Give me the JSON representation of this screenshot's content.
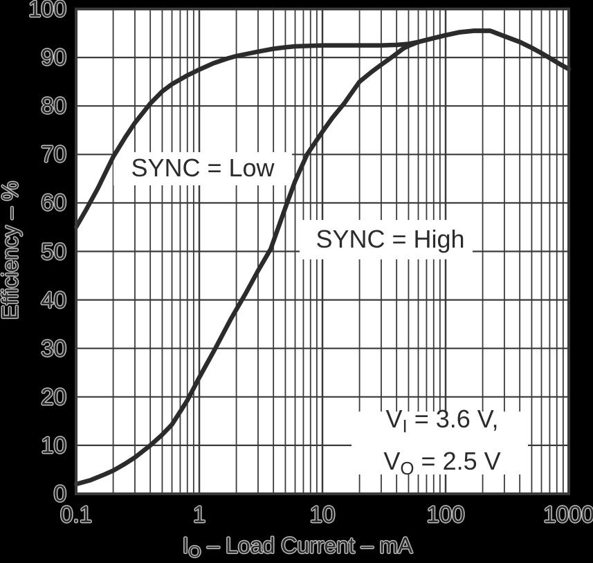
{
  "colors": {
    "background": "#000000",
    "plot_background": "#ffffff",
    "grid": "#3a3a3a",
    "curve": "#2b2b2b",
    "outside_text": "#2a2a2a",
    "outside_text_halo": "#c0c0c0",
    "inside_text": "#2b2b2b"
  },
  "axes": {
    "y": {
      "title": "Efficiency – %",
      "min": 0,
      "max": 100,
      "tick_step": 10,
      "tick_labels": [
        "0",
        "10",
        "20",
        "30",
        "40",
        "50",
        "60",
        "70",
        "80",
        "90",
        "100"
      ]
    },
    "x": {
      "title_main": "I",
      "title_sub": "O",
      "title_rest": " – Load Current – mA",
      "scale": "log",
      "min": 0.1,
      "max": 1000,
      "ticks": [
        {
          "v": 0.1,
          "label": "0.1"
        },
        {
          "v": 1,
          "label": "1"
        },
        {
          "v": 10,
          "label": "10"
        },
        {
          "v": 100,
          "label": "100"
        },
        {
          "v": 1000,
          "label": "1000"
        }
      ]
    }
  },
  "annotations": {
    "sync_low": "SYNC = Low",
    "sync_high": "SYNC = High",
    "cond1_main": "V",
    "cond1_sub": "I",
    "cond1_rest": " = 3.6 V,",
    "cond2_main": "V",
    "cond2_sub": "O",
    "cond2_rest": " = 2.5 V"
  },
  "chart_data": {
    "type": "line",
    "title": "",
    "xlabel": "IO – Load Current – mA",
    "ylabel": "Efficiency – %",
    "x_scale": "log",
    "xlim": [
      0.1,
      1000
    ],
    "ylim": [
      0,
      100
    ],
    "x_ticks": [
      0.1,
      1,
      10,
      100,
      1000
    ],
    "y_ticks": [
      0,
      10,
      20,
      30,
      40,
      50,
      60,
      70,
      80,
      90,
      100
    ],
    "grid": "major horizontal + log major/minor vertical",
    "legend_position": "inline-labels",
    "series": [
      {
        "name": "SYNC = Low",
        "points": [
          [
            0.1,
            55
          ],
          [
            0.12,
            58.5
          ],
          [
            0.15,
            63
          ],
          [
            0.2,
            69.5
          ],
          [
            0.25,
            73.5
          ],
          [
            0.3,
            76.5
          ],
          [
            0.4,
            80.5
          ],
          [
            0.5,
            83
          ],
          [
            0.6,
            84.5
          ],
          [
            0.8,
            86.3
          ],
          [
            1,
            87.5
          ],
          [
            1.3,
            88.8
          ],
          [
            1.7,
            89.8
          ],
          [
            2,
            90.3
          ],
          [
            2.5,
            90.8
          ],
          [
            3,
            91.2
          ],
          [
            4,
            91.8
          ],
          [
            5,
            92.1
          ],
          [
            6,
            92.3
          ],
          [
            8,
            92.4
          ],
          [
            10,
            92.5
          ],
          [
            15,
            92.5
          ],
          [
            20,
            92.5
          ],
          [
            30,
            92.5
          ],
          [
            40,
            92.6
          ],
          [
            50,
            92.8
          ],
          [
            60,
            93.2
          ],
          [
            80,
            94
          ],
          [
            100,
            94.6
          ],
          [
            130,
            95.2
          ],
          [
            170,
            95.5
          ],
          [
            230,
            95.5
          ],
          [
            300,
            94.4
          ],
          [
            400,
            93.2
          ],
          [
            500,
            92
          ],
          [
            600,
            90.9
          ],
          [
            700,
            89.9
          ],
          [
            850,
            88.6
          ],
          [
            1000,
            87.6
          ]
        ]
      },
      {
        "name": "SYNC = High",
        "points": [
          [
            0.1,
            2
          ],
          [
            0.13,
            2.8
          ],
          [
            0.17,
            4
          ],
          [
            0.2,
            4.8
          ],
          [
            0.25,
            6.2
          ],
          [
            0.3,
            7.5
          ],
          [
            0.4,
            10
          ],
          [
            0.5,
            12.2
          ],
          [
            0.6,
            14.3
          ],
          [
            0.8,
            19.3
          ],
          [
            1,
            24
          ],
          [
            1.35,
            30
          ],
          [
            1.8,
            36
          ],
          [
            2.4,
            41.5
          ],
          [
            3,
            46
          ],
          [
            3.8,
            50.5
          ],
          [
            5,
            59
          ],
          [
            6,
            64.5
          ],
          [
            7.5,
            70
          ],
          [
            9,
            73
          ],
          [
            10,
            74.7
          ],
          [
            12,
            77.5
          ],
          [
            15,
            80.5
          ],
          [
            20,
            85
          ],
          [
            25,
            87
          ],
          [
            30,
            88.5
          ],
          [
            35,
            89.7
          ],
          [
            40,
            90.8
          ],
          [
            45,
            91.8
          ],
          [
            50,
            92.4
          ],
          [
            60,
            93.2
          ],
          [
            80,
            94
          ],
          [
            100,
            94.6
          ],
          [
            130,
            95.2
          ],
          [
            170,
            95.5
          ],
          [
            230,
            95.5
          ],
          [
            300,
            94.4
          ],
          [
            400,
            93.2
          ],
          [
            500,
            92
          ],
          [
            600,
            90.9
          ],
          [
            700,
            89.9
          ],
          [
            850,
            88.6
          ],
          [
            1000,
            87.6
          ]
        ]
      }
    ],
    "annotations": [
      "SYNC = Low",
      "SYNC = High",
      "VI = 3.6 V,",
      "VO = 2.5 V"
    ]
  }
}
